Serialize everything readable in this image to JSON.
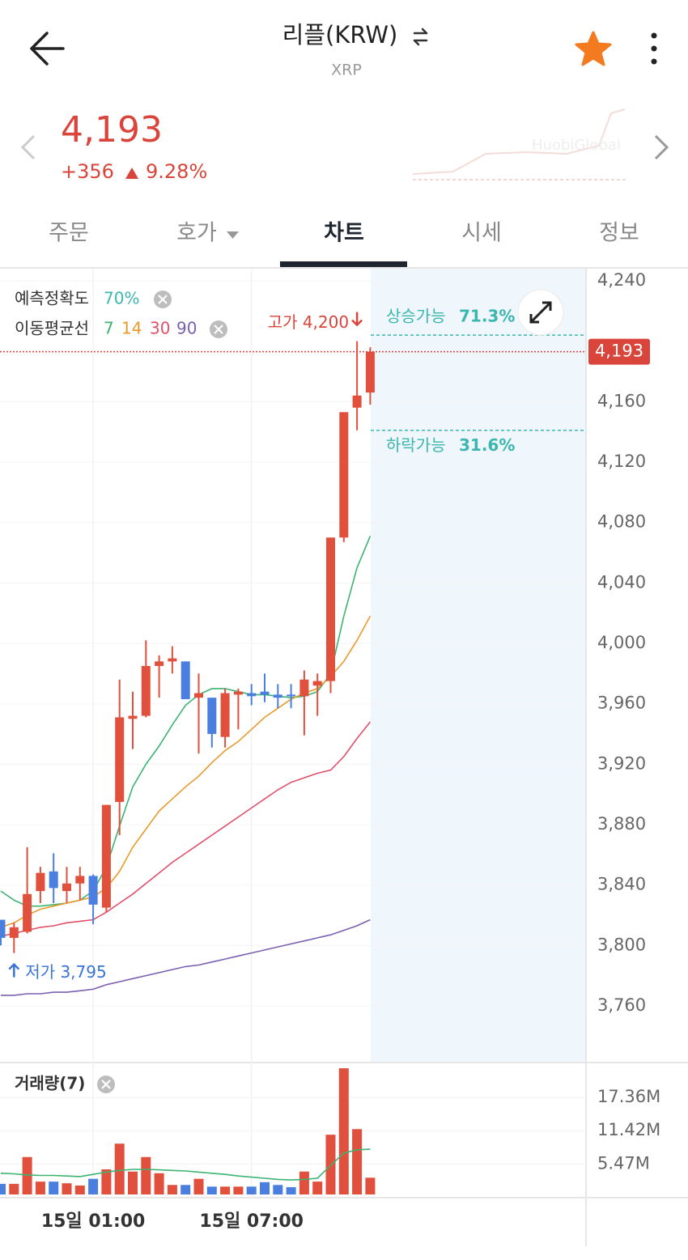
{
  "header": {
    "title": "리플(KRW)",
    "symbol": "XRP"
  },
  "price": {
    "last": "4,193",
    "change": "+356",
    "change_rate": "9.28%"
  },
  "watermark": "HuobiGlobal",
  "tabs": [
    "주문",
    "호가",
    "차트",
    "시세",
    "정보"
  ],
  "prediction": {
    "label": "예측정확도",
    "accuracy": "70%"
  },
  "chart_data": {
    "type": "candlestick",
    "categories": [
      null,
      null,
      null,
      null,
      null,
      null,
      null,
      "15일 01:00",
      null,
      null,
      null,
      null,
      null,
      null,
      null,
      null,
      null,
      null,
      null,
      "15일 07:00",
      null,
      null,
      null,
      null,
      null,
      null,
      null,
      null,
      null
    ],
    "open": [
      3817,
      3805,
      3809,
      3836,
      3849,
      3836,
      3841,
      3846,
      3825,
      3895,
      3950,
      3952,
      3985,
      3988,
      3988,
      3964,
      3964,
      3938,
      3966,
      3967,
      3968,
      3966,
      3966,
      3965,
      3972,
      3975,
      4070,
      4156,
      4166
    ],
    "high": [
      3817,
      3815,
      3865,
      3852,
      3861,
      3852,
      3852,
      3847,
      3893,
      3976,
      3968,
      4002,
      3992,
      3998,
      3988,
      3980,
      3964,
      3970,
      3970,
      3973,
      3980,
      3973,
      3973,
      3982,
      3980,
      4070,
      4153,
      4200,
      4196
    ],
    "low": [
      3800,
      3795,
      3808,
      3828,
      3828,
      3828,
      3830,
      3814,
      3822,
      3873,
      3930,
      3951,
      3964,
      3980,
      3963,
      3927,
      3931,
      3931,
      3943,
      3959,
      3961,
      3957,
      3957,
      3939,
      3952,
      3967,
      4067,
      4141,
      4158
    ],
    "close": [
      3805,
      3812,
      3834,
      3848,
      3838,
      3841,
      3846,
      3827,
      3893,
      3951,
      3952,
      3985,
      3988,
      3990,
      3963,
      3967,
      3940,
      3967,
      3968,
      3965,
      3966,
      3964,
      3965,
      3976,
      3975,
      4070,
      4153,
      4164,
      4193
    ],
    "up_color": "#e0503c",
    "down_color": "#4a7fe0",
    "ma_label": "이동평균선",
    "moving_averages": [
      {
        "name": "7",
        "color": "#3cb371",
        "values": [
          3836,
          3830,
          3826,
          3826,
          3827,
          3828,
          3830,
          3836,
          3852,
          3879,
          3905,
          3920,
          3932,
          3946,
          3959,
          3966,
          3970,
          3970,
          3968,
          3966,
          3966,
          3965,
          3964,
          3965,
          3968,
          3980,
          4018,
          4050,
          4071
        ]
      },
      {
        "name": "14",
        "color": "#e89a2c",
        "values": [
          3812,
          3815,
          3820,
          3824,
          3826,
          3828,
          3830,
          3832,
          3838,
          3849,
          3865,
          3877,
          3889,
          3897,
          3905,
          3912,
          3921,
          3929,
          3935,
          3943,
          3951,
          3957,
          3963,
          3967,
          3970,
          3978,
          3988,
          4002,
          4018
        ]
      },
      {
        "name": "30",
        "color": "#e0506a",
        "values": [
          3806,
          3808,
          3810,
          3812,
          3813,
          3815,
          3816,
          3817,
          3822,
          3828,
          3834,
          3841,
          3848,
          3855,
          3861,
          3867,
          3873,
          3879,
          3885,
          3891,
          3897,
          3903,
          3908,
          3911,
          3914,
          3916,
          3925,
          3937,
          3948
        ]
      },
      {
        "name": "90",
        "color": "#7b5fb0",
        "values": [
          3767,
          3767,
          3768,
          3768,
          3769,
          3769,
          3770,
          3771,
          3774,
          3776,
          3778,
          3780,
          3782,
          3784,
          3786,
          3787,
          3789,
          3791,
          3793,
          3795,
          3797,
          3799,
          3801,
          3803,
          3805,
          3807,
          3810,
          3813,
          3817
        ]
      }
    ],
    "ylim": [
      3723,
      4248
    ],
    "yticks": [
      {
        "value": 3760,
        "label": "3,760"
      },
      {
        "value": 3800,
        "label": "3,800"
      },
      {
        "value": 3840,
        "label": "3,840"
      },
      {
        "value": 3880,
        "label": "3,880"
      },
      {
        "value": 3920,
        "label": "3,920"
      },
      {
        "value": 3960,
        "label": "3,960"
      },
      {
        "value": 4000,
        "label": "4,000"
      },
      {
        "value": 4040,
        "label": "4,040"
      },
      {
        "value": 4080,
        "label": "4,080"
      },
      {
        "value": 4120,
        "label": "4,120"
      },
      {
        "value": 4160,
        "label": "4,160"
      },
      {
        "value": 4240,
        "label": "4,240"
      }
    ],
    "current_price": {
      "value": 4193,
      "label": "4,193"
    },
    "high_marker": {
      "value": 4200,
      "label": "고가 4,200"
    },
    "low_marker": {
      "value": 3795,
      "label": "저가 3,795"
    },
    "rise": {
      "label": "상승가능",
      "probability": "71.3%",
      "level": 4204
    },
    "fall": {
      "label": "하락가능",
      "probability": "31.6%",
      "level": 4141
    },
    "volume": {
      "title": "거래량(7)",
      "values": [
        1.9,
        1.9,
        6.7,
        2.3,
        2.3,
        2.0,
        1.6,
        2.8,
        4.5,
        9.1,
        4.1,
        6.7,
        3.8,
        1.7,
        1.7,
        2.8,
        1.4,
        1.4,
        1.4,
        1.4,
        2.2,
        1.7,
        1.3,
        4.1,
        2.3,
        10.7,
        22.6,
        11.7,
        3.0
      ],
      "ma_color": "#3cb371",
      "ma_values": [
        3.8,
        3.7,
        3.5,
        3.4,
        3.4,
        3.3,
        3.2,
        3.6,
        4.0,
        4.3,
        4.5,
        4.5,
        4.4,
        4.3,
        4.2,
        4.0,
        3.8,
        3.6,
        3.3,
        3.1,
        2.9,
        2.7,
        2.6,
        2.7,
        2.9,
        5.2,
        7.4,
        8.0,
        8.1
      ],
      "ylim": [
        0,
        22.9
      ],
      "yticks": [
        {
          "value": 5.47,
          "label": "5.47M"
        },
        {
          "value": 11.42,
          "label": "11.42M"
        },
        {
          "value": 17.36,
          "label": "17.36M"
        }
      ]
    }
  }
}
